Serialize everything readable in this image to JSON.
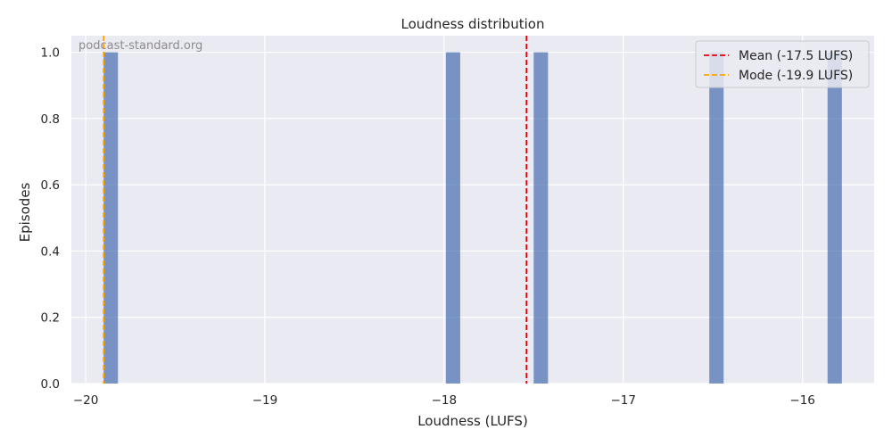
{
  "chart_data": {
    "type": "bar",
    "title": "Loudness distribution",
    "xlabel": "Loudness (LUFS)",
    "ylabel": "Episodes",
    "xlim": [
      -20.08,
      -15.6
    ],
    "ylim": [
      0,
      1.05
    ],
    "x_ticks": [
      -20,
      -19,
      -18,
      -17,
      -16
    ],
    "x_tick_labels": [
      "−20",
      "−19",
      "−18",
      "−17",
      "−16"
    ],
    "y_ticks": [
      0.0,
      0.2,
      0.4,
      0.6,
      0.8,
      1.0
    ],
    "y_tick_labels": [
      "0.0",
      "0.2",
      "0.4",
      "0.6",
      "0.8",
      "1.0"
    ],
    "grid": true,
    "bin_width": 0.08,
    "bars": [
      {
        "x_start": -19.9,
        "value": 1
      },
      {
        "x_start": -17.99,
        "value": 1
      },
      {
        "x_start": -17.5,
        "value": 1
      },
      {
        "x_start": -16.52,
        "value": 1
      },
      {
        "x_start": -15.86,
        "value": 1
      }
    ],
    "reference_lines": [
      {
        "name": "Mean (-17.5 LUFS)",
        "x": -17.54,
        "color": "#e8000b"
      },
      {
        "name": "Mode (-19.9 LUFS)",
        "x": -19.9,
        "color": "#ffa500"
      }
    ],
    "bar_color": "#4c72b0",
    "legend_position": "top-right",
    "watermark": "podcast-standard.org"
  }
}
